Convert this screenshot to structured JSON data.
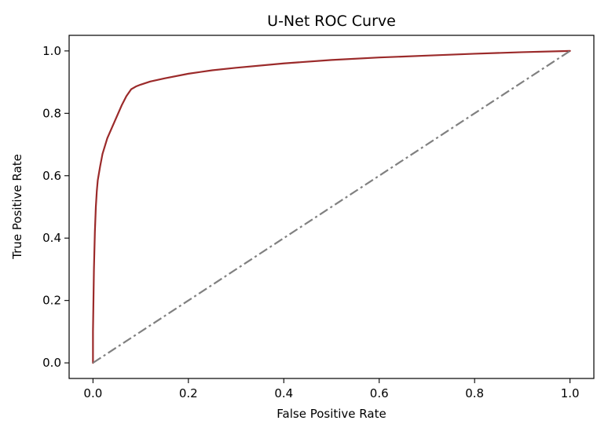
{
  "chart_data": {
    "type": "line",
    "title": "U-Net ROC Curve",
    "xlabel": "False Positive Rate",
    "ylabel": "True Positive Rate",
    "xlim": [
      -0.05,
      1.05
    ],
    "ylim": [
      -0.05,
      1.05
    ],
    "x_ticks": [
      0.0,
      0.2,
      0.4,
      0.6,
      0.8,
      1.0
    ],
    "x_tick_labels": [
      "0.0",
      "0.2",
      "0.4",
      "0.6",
      "0.8",
      "1.0"
    ],
    "y_ticks": [
      0.0,
      0.2,
      0.4,
      0.6,
      0.8,
      1.0
    ],
    "y_tick_labels": [
      "0.0",
      "0.2",
      "0.4",
      "0.6",
      "0.8",
      "1.0"
    ],
    "grid": false,
    "series": [
      {
        "color": "#9b2a2a",
        "line_style": "solid",
        "x": [
          0.0,
          0.0,
          0.002,
          0.004,
          0.006,
          0.008,
          0.01,
          0.015,
          0.02,
          0.03,
          0.04,
          0.05,
          0.06,
          0.07,
          0.08,
          0.09,
          0.1,
          0.12,
          0.15,
          0.2,
          0.25,
          0.3,
          0.4,
          0.5,
          0.6,
          0.7,
          0.8,
          0.9,
          1.0
        ],
        "y": [
          0.0,
          0.1,
          0.3,
          0.42,
          0.5,
          0.55,
          0.585,
          0.63,
          0.67,
          0.72,
          0.755,
          0.79,
          0.825,
          0.855,
          0.877,
          0.886,
          0.892,
          0.902,
          0.912,
          0.927,
          0.938,
          0.946,
          0.96,
          0.971,
          0.979,
          0.985,
          0.991,
          0.996,
          1.0
        ]
      },
      {
        "color": "#808080",
        "line_style": "dashdot",
        "x": [
          0.0,
          1.0
        ],
        "y": [
          0.0,
          1.0
        ]
      }
    ]
  }
}
